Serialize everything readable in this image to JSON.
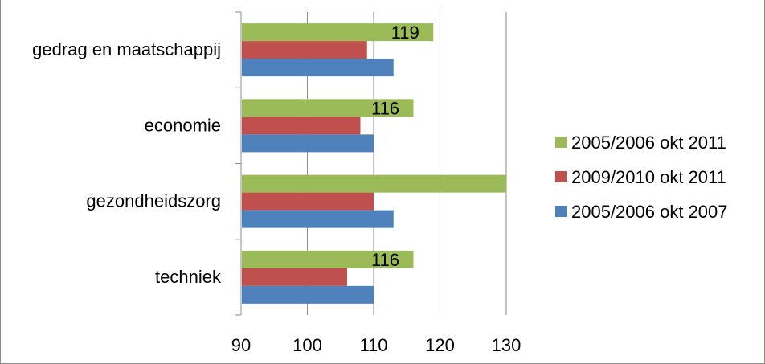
{
  "chart_data": {
    "type": "bar",
    "orientation": "horizontal",
    "categories": [
      "gedrag en maatschappij",
      "economie",
      "gezondheidszorg",
      "techniek"
    ],
    "series": [
      {
        "name": "2005/2006 okt 2011",
        "color": "#9bbb59",
        "values": [
          119,
          116,
          130.5,
          116
        ],
        "data_labels": [
          "119",
          "116",
          null,
          "116"
        ]
      },
      {
        "name": "2009/2010 okt 2011",
        "color": "#c0504d",
        "values": [
          109,
          108,
          110,
          106
        ],
        "data_labels": [
          null,
          null,
          null,
          null
        ]
      },
      {
        "name": "2005/2006 okt 2007",
        "color": "#4f81bd",
        "values": [
          113,
          110,
          113,
          110
        ],
        "data_labels": [
          null,
          null,
          null,
          null
        ]
      }
    ],
    "xlim": [
      90,
      130
    ],
    "xticks": [
      "90",
      "100",
      "110",
      "120",
      "130"
    ],
    "grid": "vertical",
    "legend": "right",
    "title": "",
    "xlabel": "",
    "ylabel": ""
  }
}
